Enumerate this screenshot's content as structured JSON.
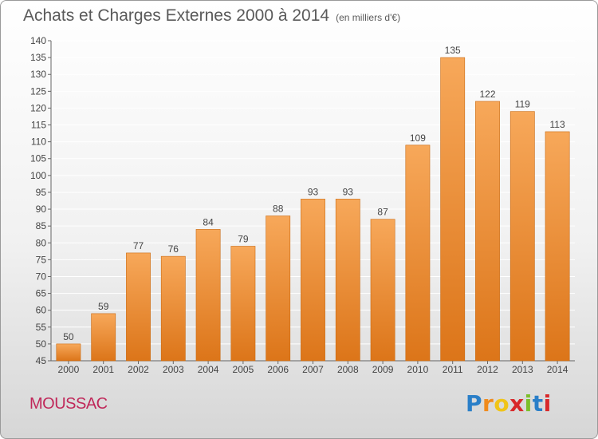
{
  "header": {
    "title": "Achats et Charges Externes 2000 à 2014",
    "unit": "(en milliers d'€)"
  },
  "footer": {
    "commune": "MOUSSAC",
    "logo_letters": [
      "P",
      "r",
      "o",
      "x",
      "i",
      "t",
      "i"
    ],
    "logo_colors": [
      "#2a7fc8",
      "#f08a1c",
      "#f0c417",
      "#d8282a",
      "#7bbf2a",
      "#2a7fc8",
      "#d8282a"
    ]
  },
  "colors": {
    "bar_top": "#f7a85a",
    "bar_bottom": "#dc7519",
    "bar_edge": "#c96a12",
    "grid": "#ffffff",
    "text": "#444444"
  },
  "chart_data": {
    "type": "bar",
    "title": "Achats et Charges Externes 2000 à 2014",
    "subtitle": "(en milliers d'€)",
    "categories": [
      "2000",
      "2001",
      "2002",
      "2003",
      "2004",
      "2005",
      "2006",
      "2007",
      "2008",
      "2009",
      "2010",
      "2011",
      "2012",
      "2013",
      "2014"
    ],
    "values": [
      50,
      59,
      77,
      76,
      84,
      79,
      88,
      93,
      93,
      87,
      109,
      135,
      122,
      119,
      113
    ],
    "ylim": [
      45,
      140
    ],
    "yticks": [
      45,
      50,
      55,
      60,
      65,
      70,
      75,
      80,
      85,
      90,
      95,
      100,
      105,
      110,
      115,
      120,
      125,
      130,
      135,
      140
    ],
    "grid": "horizontal",
    "data_labels": true,
    "legend": "none"
  }
}
